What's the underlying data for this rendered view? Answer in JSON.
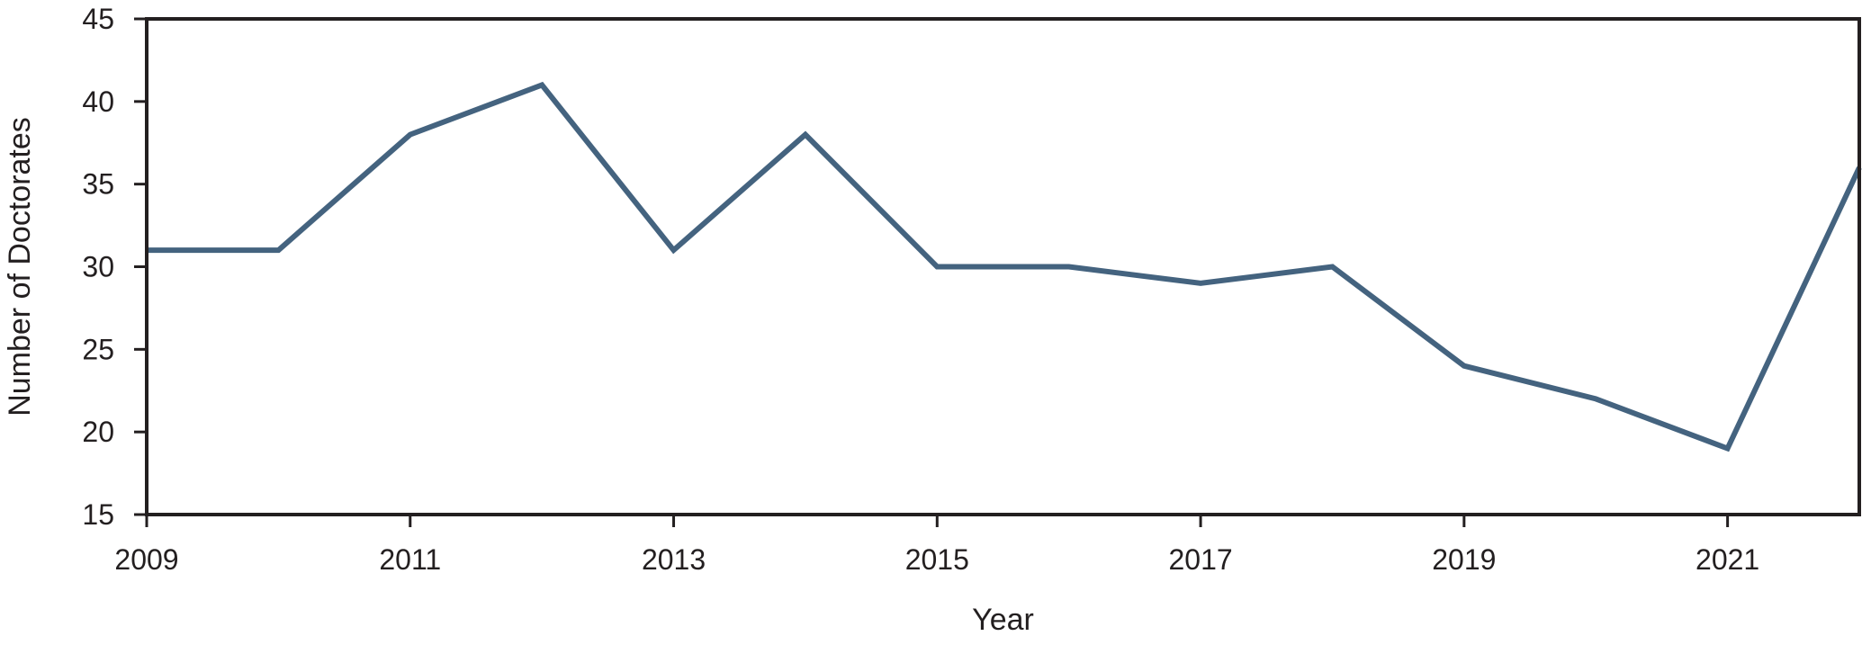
{
  "chart_data": {
    "type": "line",
    "title": "",
    "xlabel": "Year",
    "ylabel": "Number of Doctorates",
    "xlim": [
      2009,
      2022
    ],
    "ylim": [
      15,
      45
    ],
    "x_ticks": [
      2009,
      2011,
      2013,
      2015,
      2017,
      2019,
      2021
    ],
    "y_ticks": [
      15,
      20,
      25,
      30,
      35,
      40,
      45
    ],
    "grid": false,
    "legend": "none",
    "series": [
      {
        "color": "#44637f",
        "x": [
          2009,
          2010,
          2011,
          2012,
          2013,
          2014,
          2015,
          2016,
          2017,
          2018,
          2019,
          2020,
          2021,
          2022
        ],
        "y": [
          31,
          31,
          38,
          41,
          31,
          38,
          30,
          30,
          29,
          30,
          24,
          22,
          19,
          36
        ]
      }
    ]
  }
}
